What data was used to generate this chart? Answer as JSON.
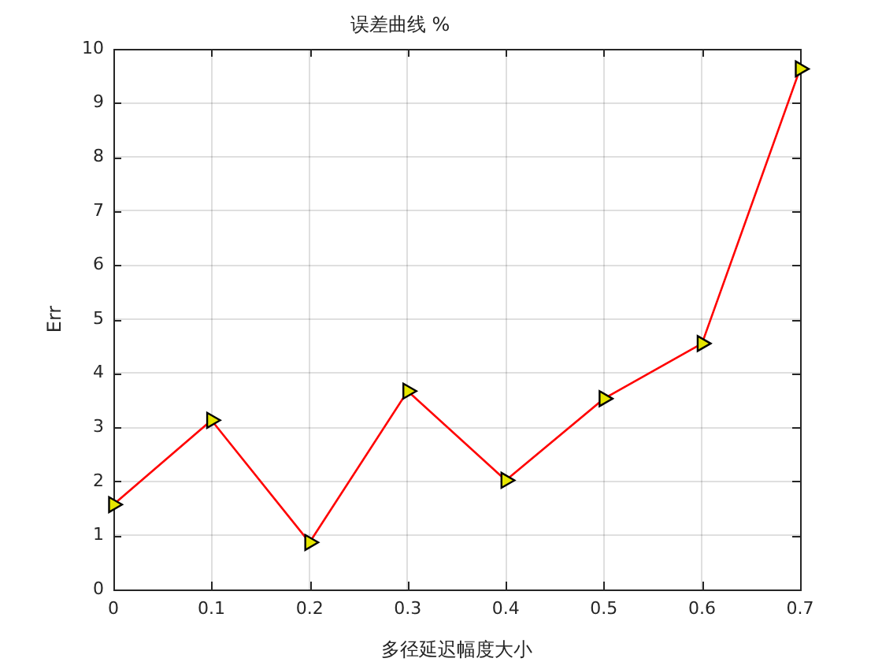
{
  "chart_data": {
    "type": "line",
    "title": "误差曲线 %",
    "xlabel": "多径延迟幅度大小",
    "ylabel": "Err",
    "x": [
      0,
      0.1,
      0.2,
      0.3,
      0.4,
      0.5,
      0.6,
      0.7
    ],
    "series": [
      {
        "color": "#ff0000",
        "values": [
          1.57,
          3.13,
          0.87,
          3.67,
          2.02,
          3.53,
          4.55,
          9.63
        ]
      }
    ],
    "xlim": [
      0,
      0.7
    ],
    "ylim": [
      0,
      10
    ],
    "xticks": [
      0,
      0.1,
      0.2,
      0.3,
      0.4,
      0.5,
      0.6,
      0.7
    ],
    "yticks": [
      0,
      1,
      2,
      3,
      4,
      5,
      6,
      7,
      8,
      9,
      10
    ],
    "grid": true,
    "legend": false,
    "marker": "triangle",
    "line_style": "solid"
  }
}
